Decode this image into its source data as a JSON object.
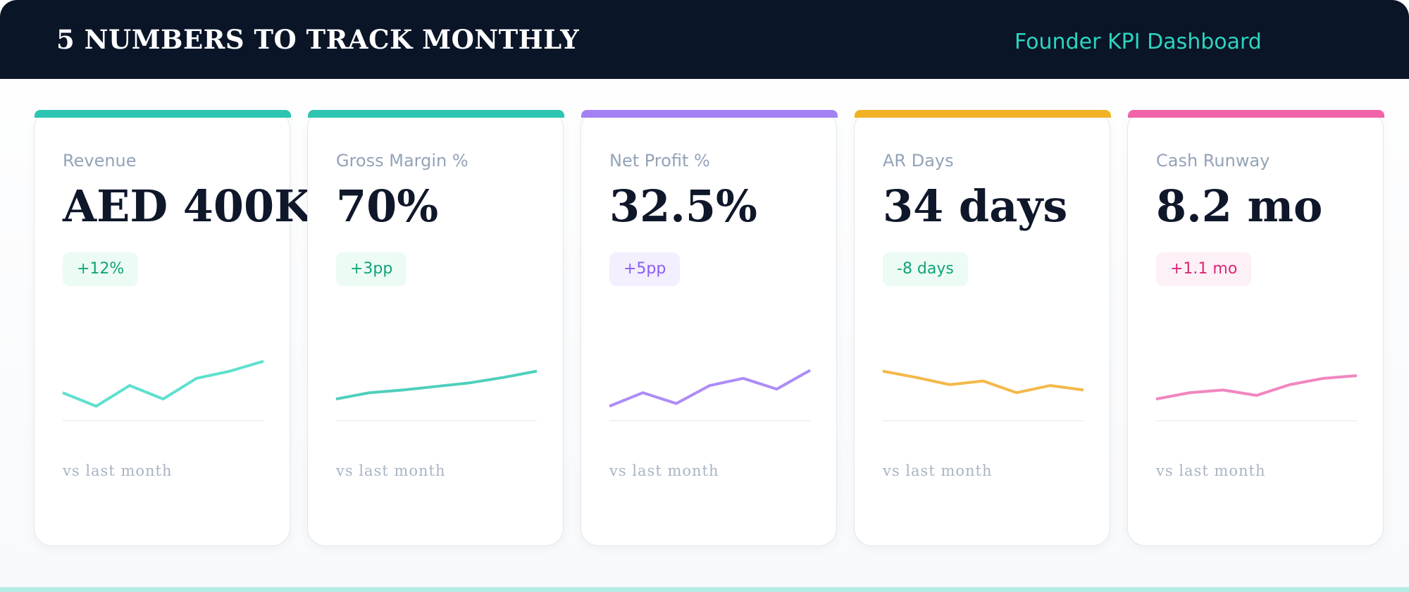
{
  "header": {
    "title": "5 NUMBERS TO TRACK MONTHLY",
    "subtitle": "Founder KPI Dashboard"
  },
  "cards": [
    {
      "label": "Revenue",
      "value": "AED 400K",
      "change": "+12%",
      "note": "vs last month",
      "color": "#2cc5b1",
      "line_color": "#5fe0cf",
      "badge_color": "#10a37a",
      "badge_bg": "#ecfbf4",
      "trend": [
        34,
        19,
        42,
        27,
        50,
        58,
        69
      ]
    },
    {
      "label": "Gross Margin %",
      "value": "70%",
      "change": "+3pp",
      "note": "vs last month",
      "color": "#2cc5b1",
      "line_color": "#4fcfbd",
      "badge_color": "#10a37a",
      "badge_bg": "#ecfbf4",
      "trend": [
        27,
        34,
        37,
        41,
        45,
        51,
        58
      ]
    },
    {
      "label": "Net Profit %",
      "value": "32.5%",
      "change": "+5pp",
      "note": "vs last month",
      "color": "#a281f4",
      "line_color": "#ad8cf7",
      "badge_color": "#8b5cf6",
      "badge_bg": "#f3effe",
      "trend": [
        19,
        34,
        22,
        42,
        50,
        38,
        59
      ]
    },
    {
      "label": "AR Days",
      "value": "34 days",
      "change": "-8 days",
      "note": "vs last month",
      "color": "#f2b124",
      "line_color": "#f5b84a",
      "badge_color": "#10a37a",
      "badge_bg": "#ecfbf4",
      "trend": [
        58,
        51,
        43,
        47,
        34,
        42,
        37
      ]
    },
    {
      "label": "Cash Runway",
      "value": "8.2 mo",
      "change": "+1.1 mo",
      "note": "vs last month",
      "color": "#f063a8",
      "line_color": "#f186bf",
      "badge_color": "#db2777",
      "badge_bg": "#fdf0f7",
      "trend": [
        27,
        34,
        37,
        31,
        43,
        50,
        53
      ]
    }
  ]
}
